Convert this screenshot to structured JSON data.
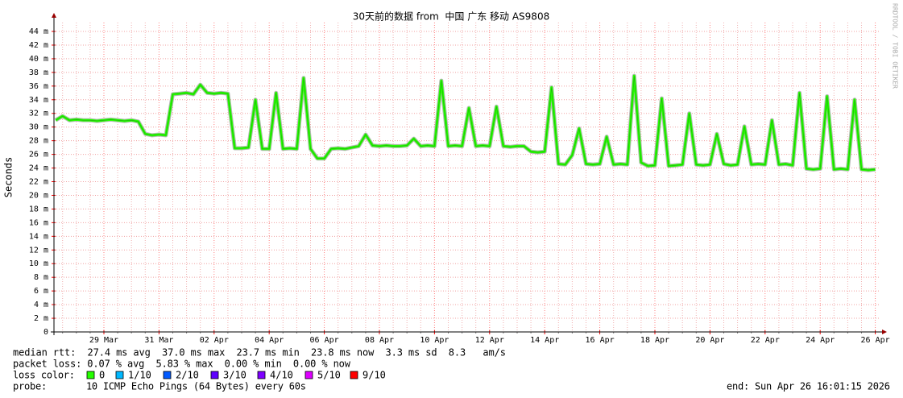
{
  "chart_data": {
    "type": "line",
    "title": "30天前的数据 from  中国 广东 移动 AS9808",
    "y_label": "Seconds",
    "side_text": "RRDTOOL / TOBI OETIKER",
    "categories": [
      null,
      null,
      null,
      null,
      null,
      null,
      null,
      "29 Mar",
      null,
      null,
      null,
      null,
      null,
      null,
      null,
      "31 Mar",
      null,
      null,
      null,
      null,
      null,
      null,
      null,
      "02 Apr",
      null,
      null,
      null,
      null,
      null,
      null,
      null,
      "04 Apr",
      null,
      null,
      null,
      null,
      null,
      null,
      null,
      "06 Apr",
      null,
      null,
      null,
      null,
      null,
      null,
      null,
      "08 Apr",
      null,
      null,
      null,
      null,
      null,
      null,
      null,
      "10 Apr",
      null,
      null,
      null,
      null,
      null,
      null,
      null,
      "12 Apr",
      null,
      null,
      null,
      null,
      null,
      null,
      null,
      "14 Apr",
      null,
      null,
      null,
      null,
      null,
      null,
      null,
      "16 Apr",
      null,
      null,
      null,
      null,
      null,
      null,
      null,
      "18 Apr",
      null,
      null,
      null,
      null,
      null,
      null,
      null,
      "20 Apr",
      null,
      null,
      null,
      null,
      null,
      null,
      null,
      "22 Apr",
      null,
      null,
      null,
      null,
      null,
      null,
      null,
      "24 Apr",
      null,
      null,
      null,
      null,
      null,
      null,
      null,
      "26 Apr"
    ],
    "values": [
      0.031,
      0.0316,
      0.031,
      0.0311,
      0.031,
      0.031,
      0.0309,
      0.031,
      0.0311,
      0.031,
      0.0309,
      0.031,
      0.0308,
      0.029,
      0.0288,
      0.0289,
      0.0288,
      0.0348,
      0.0349,
      0.035,
      0.0348,
      0.0362,
      0.035,
      0.0349,
      0.035,
      0.0349,
      0.0269,
      0.0269,
      0.027,
      0.034,
      0.0268,
      0.0268,
      0.035,
      0.0268,
      0.0269,
      0.0268,
      0.0372,
      0.0268,
      0.0254,
      0.0254,
      0.0268,
      0.0269,
      0.0268,
      0.027,
      0.0272,
      0.0289,
      0.0273,
      0.0272,
      0.0273,
      0.0272,
      0.0272,
      0.0273,
      0.0283,
      0.0272,
      0.0273,
      0.0272,
      0.0368,
      0.0272,
      0.0273,
      0.0272,
      0.0328,
      0.0272,
      0.0273,
      0.0272,
      0.033,
      0.0272,
      0.0271,
      0.0272,
      0.0272,
      0.0264,
      0.0263,
      0.0264,
      0.0358,
      0.0246,
      0.0245,
      0.0259,
      0.0298,
      0.0246,
      0.0245,
      0.0246,
      0.0286,
      0.0245,
      0.0246,
      0.0245,
      0.0375,
      0.0248,
      0.0243,
      0.0244,
      0.0342,
      0.0243,
      0.0244,
      0.0245,
      0.032,
      0.0245,
      0.0244,
      0.0245,
      0.029,
      0.0246,
      0.0244,
      0.0245,
      0.0301,
      0.0245,
      0.0246,
      0.0245,
      0.031,
      0.0245,
      0.0246,
      0.0244,
      0.035,
      0.0239,
      0.0238,
      0.0239,
      0.0345,
      0.0238,
      0.0239,
      0.0238,
      0.034,
      0.0238,
      0.0237,
      0.0238
    ],
    "color": "#26ff00",
    "ylim": [
      0,
      0.0453
    ],
    "yticks": [
      0,
      {
        "value": 0.002,
        "label": "2 m"
      },
      {
        "value": 0.004,
        "label": "4 m"
      },
      {
        "value": 0.006,
        "label": "6 m"
      },
      {
        "value": 0.008,
        "label": "8 m"
      },
      {
        "value": 0.01,
        "label": "10 m"
      },
      {
        "value": 0.012,
        "label": "12 m"
      },
      {
        "value": 0.014,
        "label": "14 m"
      },
      {
        "value": 0.016,
        "label": "16 m"
      },
      {
        "value": 0.018,
        "label": "18 m"
      },
      {
        "value": 0.02,
        "label": "20 m"
      },
      {
        "value": 0.022,
        "label": "22 m"
      },
      {
        "value": 0.024,
        "label": "24 m"
      },
      {
        "value": 0.026,
        "label": "26 m"
      },
      {
        "value": 0.028,
        "label": "28 m"
      },
      {
        "value": 0.03,
        "label": "30 m"
      },
      {
        "value": 0.032,
        "label": "32 m"
      },
      {
        "value": 0.034,
        "label": "34 m"
      },
      {
        "value": 0.036,
        "label": "36 m"
      },
      {
        "value": 0.038,
        "label": "38 m"
      },
      {
        "value": 0.04,
        "label": "40 m"
      },
      {
        "value": 0.042,
        "label": "42 m"
      },
      {
        "value": 0.044,
        "label": "44 m"
      }
    ],
    "grid": true
  },
  "legend": {
    "median_rtt": "median rtt:  27.4 ms avg  37.0 ms max  23.7 ms min  23.8 ms now  3.3 ms sd  8.3   am/s",
    "packet_loss": "packet loss: 0.07 % avg  5.83 % max  0.00 % min  0.00 % now",
    "loss_color_label": "loss color:",
    "loss_colors": [
      {
        "label": "0",
        "color": "#26ff00"
      },
      {
        "label": "1/10",
        "color": "#00b8ff"
      },
      {
        "label": "2/10",
        "color": "#0059ff"
      },
      {
        "label": "3/10",
        "color": "#5e00ff"
      },
      {
        "label": "4/10",
        "color": "#7e00ff"
      },
      {
        "label": "5/10",
        "color": "#dd00ff"
      },
      {
        "label": "9/10",
        "color": "#ff0000"
      }
    ],
    "probe": "probe:       10 ICMP Echo Pings (64 Bytes) every 60s",
    "end": "end: Sun Apr 26 16:01:15 2026"
  }
}
